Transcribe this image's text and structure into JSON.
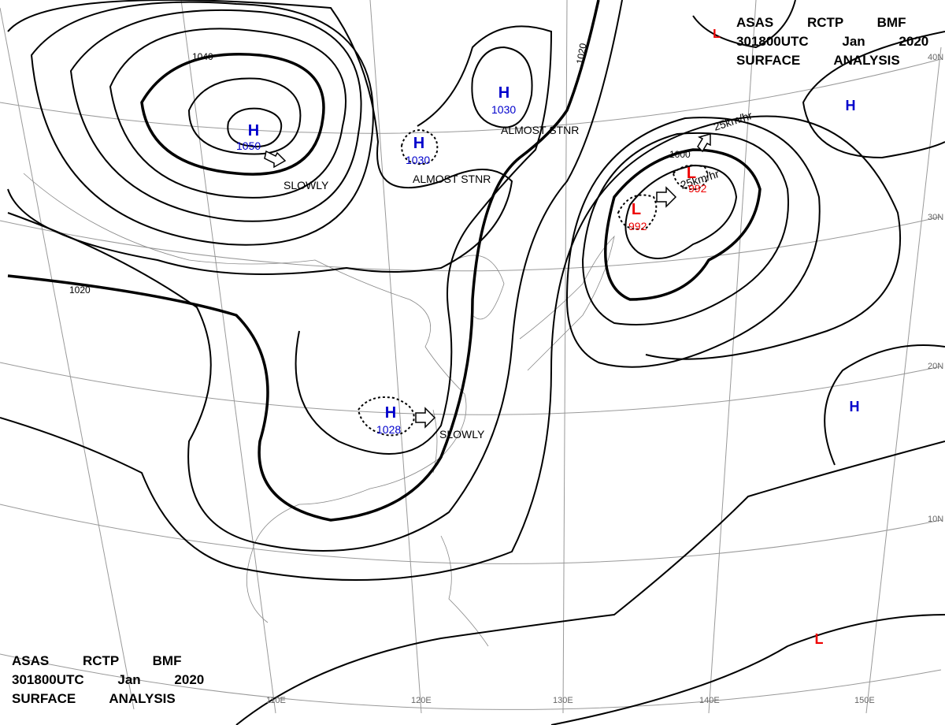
{
  "header": {
    "lines": [
      "ASAS RCTP BMF",
      "301800UTC Jan 2020",
      "SURFACE ANALYSIS"
    ]
  },
  "centers": [
    {
      "letter": "H",
      "value": "1050"
    },
    {
      "letter": "H",
      "value": "1030"
    },
    {
      "letter": "H",
      "value": "1030"
    },
    {
      "letter": "H",
      "value": "1028"
    },
    {
      "letter": "L",
      "value": "992"
    },
    {
      "letter": "L",
      "value": "992"
    },
    {
      "letter": "H"
    },
    {
      "letter": "H"
    },
    {
      "letter": "L"
    },
    {
      "letter": "L"
    }
  ],
  "isobar_labels": [
    "1040",
    "1020",
    "1000",
    "1020"
  ],
  "annotations": [
    "SLOWLY",
    "ALMOST STNR",
    "ALMOST STNR",
    "SLOWLY",
    "25km/hr",
    "25km/hr"
  ],
  "latitudes": [
    "40N",
    "30N",
    "20N",
    "10N"
  ],
  "longitudes": [
    "110E",
    "120E",
    "130E",
    "140E",
    "150E"
  ]
}
